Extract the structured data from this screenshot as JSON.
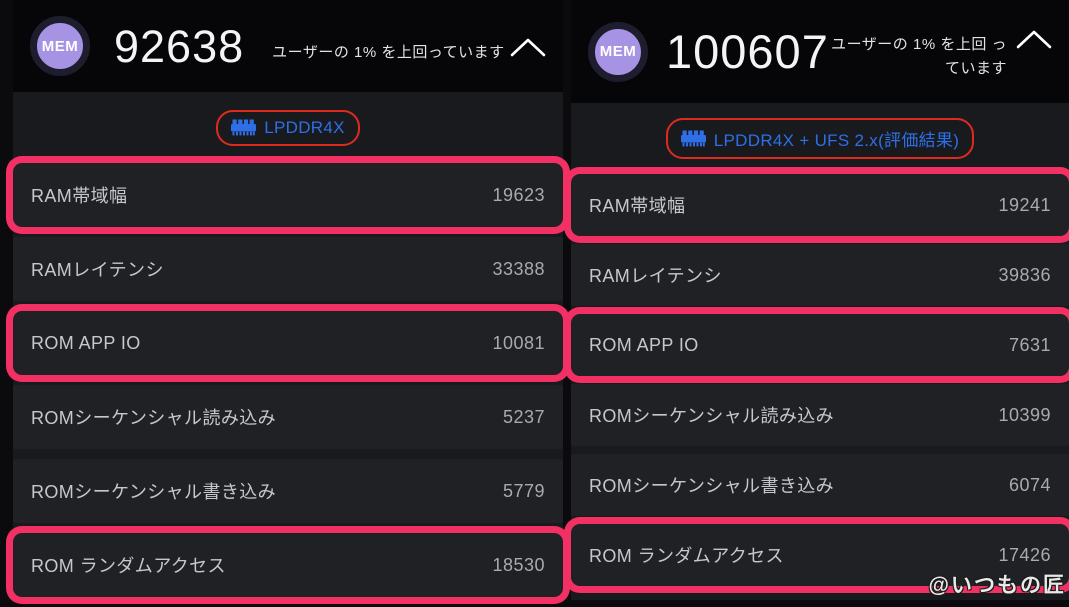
{
  "watermark": "@いつもの匠",
  "colors": {
    "highlight_pink": "#f23064",
    "annotation_red": "#de2b1f",
    "memory_blue": "#2e6fe8",
    "badge_purple": "#a793e4"
  },
  "panels": [
    {
      "badge": "MEM",
      "score": "92638",
      "percentile_text": "ユーザーの 1% を上回っています",
      "memory_type": "LPDDR4X",
      "rows": [
        {
          "label": "RAM帯域幅",
          "value": "19623",
          "highlighted": true
        },
        {
          "label": "RAMレイテンシ",
          "value": "33388",
          "highlighted": false
        },
        {
          "label": "ROM APP IO",
          "value": "10081",
          "highlighted": true
        },
        {
          "label": "ROMシーケンシャル読み込み",
          "value": "5237",
          "highlighted": false
        },
        {
          "label": "ROMシーケンシャル書き込み",
          "value": "5779",
          "highlighted": false
        },
        {
          "label": "ROM ランダムアクセス",
          "value": "18530",
          "highlighted": true
        }
      ]
    },
    {
      "badge": "MEM",
      "score": "100607",
      "percentile_text": "ユーザーの 1% を上回 っています",
      "memory_type": "LPDDR4X + UFS 2.x(評価結果)",
      "rows": [
        {
          "label": "RAM帯域幅",
          "value": "19241",
          "highlighted": true
        },
        {
          "label": "RAMレイテンシ",
          "value": "39836",
          "highlighted": false
        },
        {
          "label": "ROM APP IO",
          "value": "7631",
          "highlighted": true
        },
        {
          "label": "ROMシーケンシャル読み込み",
          "value": "10399",
          "highlighted": false
        },
        {
          "label": "ROMシーケンシャル書き込み",
          "value": "6074",
          "highlighted": false
        },
        {
          "label": "ROM ランダムアクセス",
          "value": "17426",
          "highlighted": true
        }
      ]
    }
  ]
}
